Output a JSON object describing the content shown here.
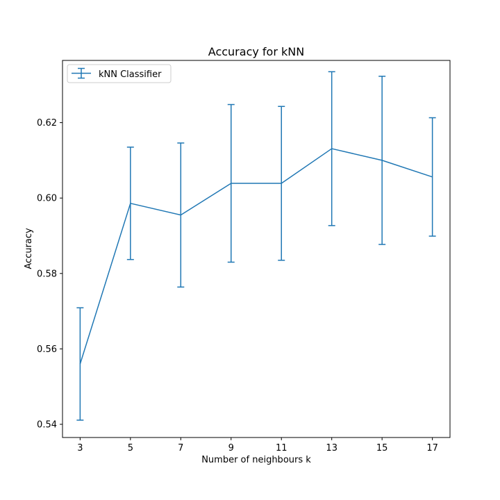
{
  "chart_data": {
    "type": "line",
    "title": "Accuracy for kNN",
    "xlabel": "Number of neighbours k",
    "ylabel": "Accuracy",
    "x": [
      3,
      5,
      7,
      9,
      11,
      13,
      15,
      17
    ],
    "xticks": [
      3,
      5,
      7,
      9,
      11,
      13,
      15,
      17
    ],
    "yticks": [
      0.54,
      0.56,
      0.58,
      0.6,
      0.62
    ],
    "ytick_labels": [
      "0.54",
      "0.56",
      "0.58",
      "0.60",
      "0.62"
    ],
    "xlim": [
      2.3,
      17.7
    ],
    "ylim": [
      0.5365,
      0.6365
    ],
    "legend_position": "top-left",
    "grid": false,
    "series": [
      {
        "name": "kNN Classifier",
        "color": "#1f77b4",
        "values": [
          0.556,
          0.5986,
          0.5955,
          0.6039,
          0.6039,
          0.6131,
          0.61,
          0.6056
        ],
        "error": [
          0.0149,
          0.0149,
          0.0191,
          0.0209,
          0.0204,
          0.0204,
          0.0223,
          0.0157
        ]
      }
    ]
  }
}
